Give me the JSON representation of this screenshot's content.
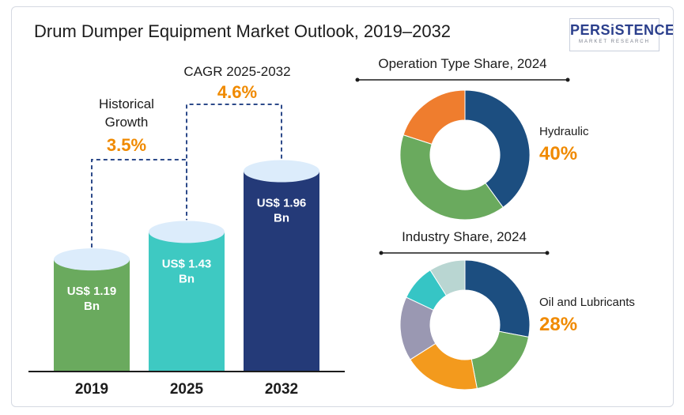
{
  "title": "Drum Dumper Equipment Market Outlook, 2019–2032",
  "logo": {
    "brand": "PERSiSTENCE",
    "tagline": "MARKET RESEARCH"
  },
  "chart_data": [
    {
      "type": "bar",
      "categories": [
        "2019",
        "2025",
        "2032"
      ],
      "values": [
        1.19,
        1.43,
        1.96
      ],
      "value_labels": [
        [
          "US$ 1.19",
          "Bn"
        ],
        [
          "US$ 1.43",
          "Bn"
        ],
        [
          "US$ 1.96",
          "Bn"
        ]
      ],
      "colors": [
        "#6aaa5e",
        "#3ec9c2",
        "#243a78"
      ],
      "cap_color": "#dcecfb",
      "annotations": [
        {
          "label": [
            "Historical",
            "Growth"
          ],
          "value": "3.5%"
        },
        {
          "label": [
            "CAGR 2025-2032"
          ],
          "value": "4.6%"
        }
      ]
    },
    {
      "type": "pie",
      "title": "Operation Type Share, 2024",
      "highlight_label": "Hydraulic",
      "highlight_value": "40%",
      "slices": [
        {
          "value": 40,
          "color": "#1c4e80"
        },
        {
          "value": 40,
          "color": "#6aaa5e"
        },
        {
          "value": 20,
          "color": "#ef7d2e"
        }
      ]
    },
    {
      "type": "pie",
      "title": "Industry Share, 2024",
      "highlight_label": "Oil and Lubricants",
      "highlight_value": "28%",
      "slices": [
        {
          "value": 28,
          "color": "#1c4e80"
        },
        {
          "value": 19,
          "color": "#6aaa5e"
        },
        {
          "value": 19,
          "color": "#f39a1d"
        },
        {
          "value": 16,
          "color": "#9a98b2"
        },
        {
          "value": 9,
          "color": "#36c5c5"
        },
        {
          "value": 9,
          "color": "#b9d6d2"
        }
      ]
    }
  ]
}
